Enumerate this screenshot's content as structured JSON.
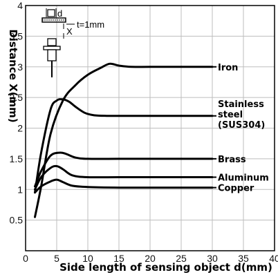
{
  "chart_data": {
    "type": "line",
    "xlabel": "Side length of sensing object d(mm)",
    "ylabel": "Distance X(mm)",
    "xlim": [
      0,
      40
    ],
    "ylim": [
      0,
      4
    ],
    "x_ticks": [
      "0",
      "5",
      "10",
      "15",
      "20",
      "25",
      "30",
      "35",
      "40"
    ],
    "y_ticks": [
      "0.5",
      "1",
      "1.5",
      "2",
      "2.5",
      "3",
      "3.5",
      "4"
    ],
    "grid": true,
    "series": [
      {
        "name": "Iron",
        "x": [
          1.5,
          2.5,
          4,
          6,
          8,
          10,
          12,
          13.5,
          15,
          17,
          20,
          25,
          30
        ],
        "y": [
          0.55,
          1.05,
          1.9,
          2.45,
          2.7,
          2.87,
          2.98,
          3.05,
          3.02,
          3.0,
          3.0,
          3.0,
          3.0
        ]
      },
      {
        "name": "Stainless steel (SUS304)",
        "x": [
          1.5,
          2.5,
          4,
          5,
          6,
          7,
          8,
          9.5,
          11,
          13,
          16,
          20,
          25,
          30
        ],
        "y": [
          0.95,
          1.6,
          2.3,
          2.45,
          2.47,
          2.43,
          2.35,
          2.25,
          2.21,
          2.2,
          2.2,
          2.2,
          2.2,
          2.2
        ]
      },
      {
        "name": "Brass",
        "x": [
          1.5,
          2.5,
          4,
          5.5,
          6.5,
          8,
          10,
          15,
          20,
          25,
          30
        ],
        "y": [
          1.05,
          1.3,
          1.55,
          1.6,
          1.58,
          1.52,
          1.5,
          1.5,
          1.5,
          1.5,
          1.5
        ]
      },
      {
        "name": "Aluminum",
        "x": [
          1.5,
          2.5,
          4,
          5,
          6,
          7.5,
          10,
          15,
          20,
          25,
          30
        ],
        "y": [
          1.0,
          1.2,
          1.35,
          1.38,
          1.33,
          1.23,
          1.2,
          1.2,
          1.2,
          1.2,
          1.2
        ]
      },
      {
        "name": "Copper",
        "x": [
          1.5,
          2.5,
          4,
          5,
          6,
          7.5,
          10,
          15,
          20,
          25,
          30
        ],
        "y": [
          0.95,
          1.05,
          1.13,
          1.16,
          1.12,
          1.06,
          1.04,
          1.03,
          1.03,
          1.03,
          1.03
        ]
      }
    ],
    "labels": [
      {
        "lines": [
          "Iron"
        ],
        "x": 30,
        "y": 3.0
      },
      {
        "lines": [
          "Stainless",
          "steel",
          "(SUS304)"
        ],
        "x": 30,
        "y": 2.2
      },
      {
        "lines": [
          "Brass"
        ],
        "x": 30,
        "y": 1.5
      },
      {
        "lines": [
          "Aluminum"
        ],
        "x": 30,
        "y": 1.2
      },
      {
        "lines": [
          "Copper"
        ],
        "x": 30,
        "y": 1.03
      }
    ],
    "inset": {
      "d_label": "d",
      "x_label": "X",
      "t_label": "t=1mm"
    }
  }
}
